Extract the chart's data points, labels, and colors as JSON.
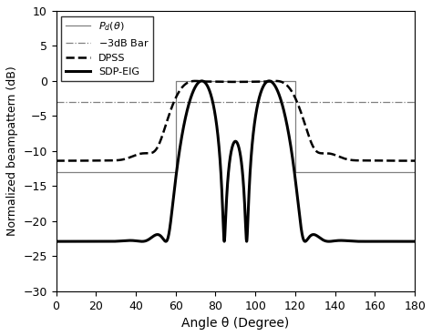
{
  "title": "",
  "xlabel": "Angle θ (Degree)",
  "ylabel": "Normalized beampattern (dB)",
  "xlim": [
    0,
    180
  ],
  "ylim": [
    -30,
    10
  ],
  "yticks": [
    -30,
    -25,
    -20,
    -15,
    -10,
    -5,
    0,
    5,
    10
  ],
  "xticks": [
    0,
    20,
    40,
    60,
    80,
    100,
    120,
    140,
    160,
    180
  ],
  "desired_low": 60,
  "desired_high": 120,
  "desired_passband": 0,
  "desired_stopband": -13,
  "bar_3dB": -3,
  "background_color": "#ffffff",
  "grid": false,
  "legend_loc": "upper left",
  "Pd_color": "gray",
  "bar_color": "gray",
  "dpss_color": "black",
  "sdp_color": "black",
  "Pd_lw": 0.9,
  "bar_lw": 0.9,
  "dpss_lw": 1.8,
  "sdp_lw": 2.2
}
